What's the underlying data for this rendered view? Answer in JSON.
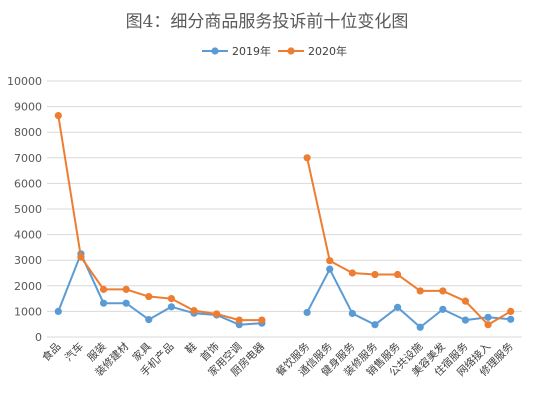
{
  "chart_data": {
    "type": "line",
    "title": "图4：细分商品服务投诉前十位变化图",
    "xlabel": "",
    "ylabel": "",
    "ylim": [
      0,
      10000
    ],
    "ytick_step": 1000,
    "grid": true,
    "legend_position": "top",
    "groups": [
      {
        "categories": [
          "食品",
          "汽车",
          "服装",
          "装修建材",
          "家具",
          "手机产品",
          "鞋",
          "首饰",
          "家用空调",
          "厨房电器"
        ],
        "series": [
          {
            "name": "2019年",
            "values": [
              1000,
              3250,
              1320,
              1320,
              680,
              1180,
              930,
              860,
              480,
              540
            ]
          },
          {
            "name": "2020年",
            "values": [
              8650,
              3120,
              1860,
              1860,
              1580,
              1500,
              1030,
              900,
              660,
              660
            ]
          }
        ]
      },
      {
        "categories": [
          "餐饮服务",
          "通信服务",
          "健身服务",
          "装修服务",
          "销售服务",
          "公共设施",
          "美容美发",
          "住宿服务",
          "网络接入",
          "修理服务"
        ],
        "series": [
          {
            "name": "2019年",
            "values": [
              960,
              2650,
              920,
              480,
              1160,
              380,
              1080,
              660,
              770,
              690
            ]
          },
          {
            "name": "2020年",
            "values": [
              7000,
              2980,
              2500,
              2440,
              2440,
              1800,
              1800,
              1400,
              480,
              1000
            ]
          }
        ]
      }
    ],
    "series_colors": {
      "2019年": "#5b9bd5",
      "2020年": "#ed7d31"
    }
  }
}
